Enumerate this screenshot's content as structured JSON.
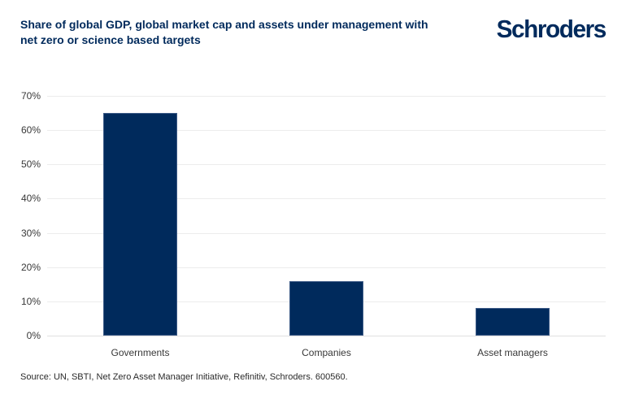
{
  "header": {
    "title_lines": [
      "Share of global GDP, global market cap and assets under management with",
      "net zero or science based targets"
    ],
    "logo_text": "Schroders"
  },
  "chart_data": {
    "type": "bar",
    "title": "Share of global GDP, global market cap and assets under management with net zero or science based targets",
    "categories": [
      "Governments",
      "Companies",
      "Asset managers"
    ],
    "values": [
      65,
      16,
      8
    ],
    "value_unit": "%",
    "xlabel": "",
    "ylabel": "",
    "ylim": [
      0,
      70
    ],
    "ytick_step": 10,
    "ytick_labels": [
      "0%",
      "10%",
      "20%",
      "30%",
      "40%",
      "50%",
      "60%",
      "70%"
    ],
    "grid": true,
    "legend": null,
    "bar_color": "#002a5c",
    "gridline_color": "#ececec"
  },
  "footer": {
    "source": "Source: UN, SBTI, Net Zero Asset Manager Initiative, Refinitiv, Schroders. 600560."
  },
  "colors": {
    "brand_navy": "#002a5c",
    "axis_text": "#383838",
    "background": "#ffffff"
  }
}
